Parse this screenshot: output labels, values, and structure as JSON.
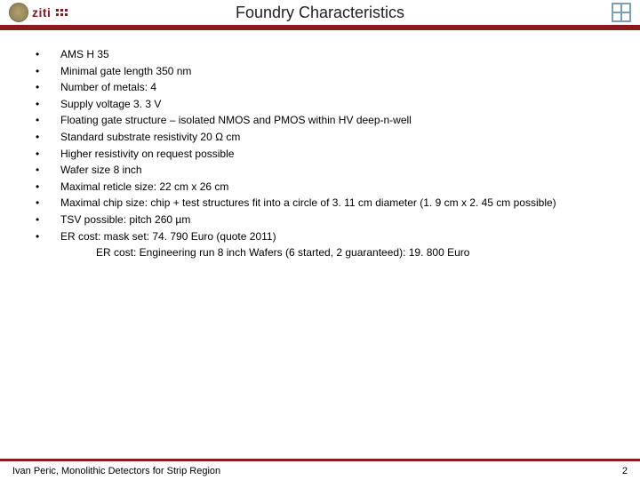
{
  "header": {
    "logo_text": "ziti",
    "title": "Foundry Characteristics"
  },
  "bullets": [
    "AMS H 35",
    "Minimal gate length 350 nm",
    "Number of metals: 4",
    "Supply voltage 3. 3 V",
    "Floating gate structure – isolated NMOS and PMOS within HV deep-n-well",
    "Standard substrate resistivity 20 Ω cm",
    "Higher resistivity on request possible",
    "Wafer size 8 inch",
    "Maximal reticle size: 22 cm x 26 cm",
    "Maximal chip size: chip + test structures fit into a circle of 3. 11 cm diameter (1. 9 cm x 2. 45 cm possible)",
    "TSV possible: pitch 260 µm",
    "ER cost: mask set: 74. 790 Euro (quote 2011)"
  ],
  "continuation": "ER cost: Engineering run 8 inch Wafers (6 started, 2 guaranteed):  19. 800 Euro",
  "footer": {
    "left": "Ivan Peric, Monolithic Detectors for Strip Region",
    "page": "2"
  },
  "colors": {
    "accent": "#8b1a1a",
    "background": "#ffffff",
    "text": "#000000"
  }
}
